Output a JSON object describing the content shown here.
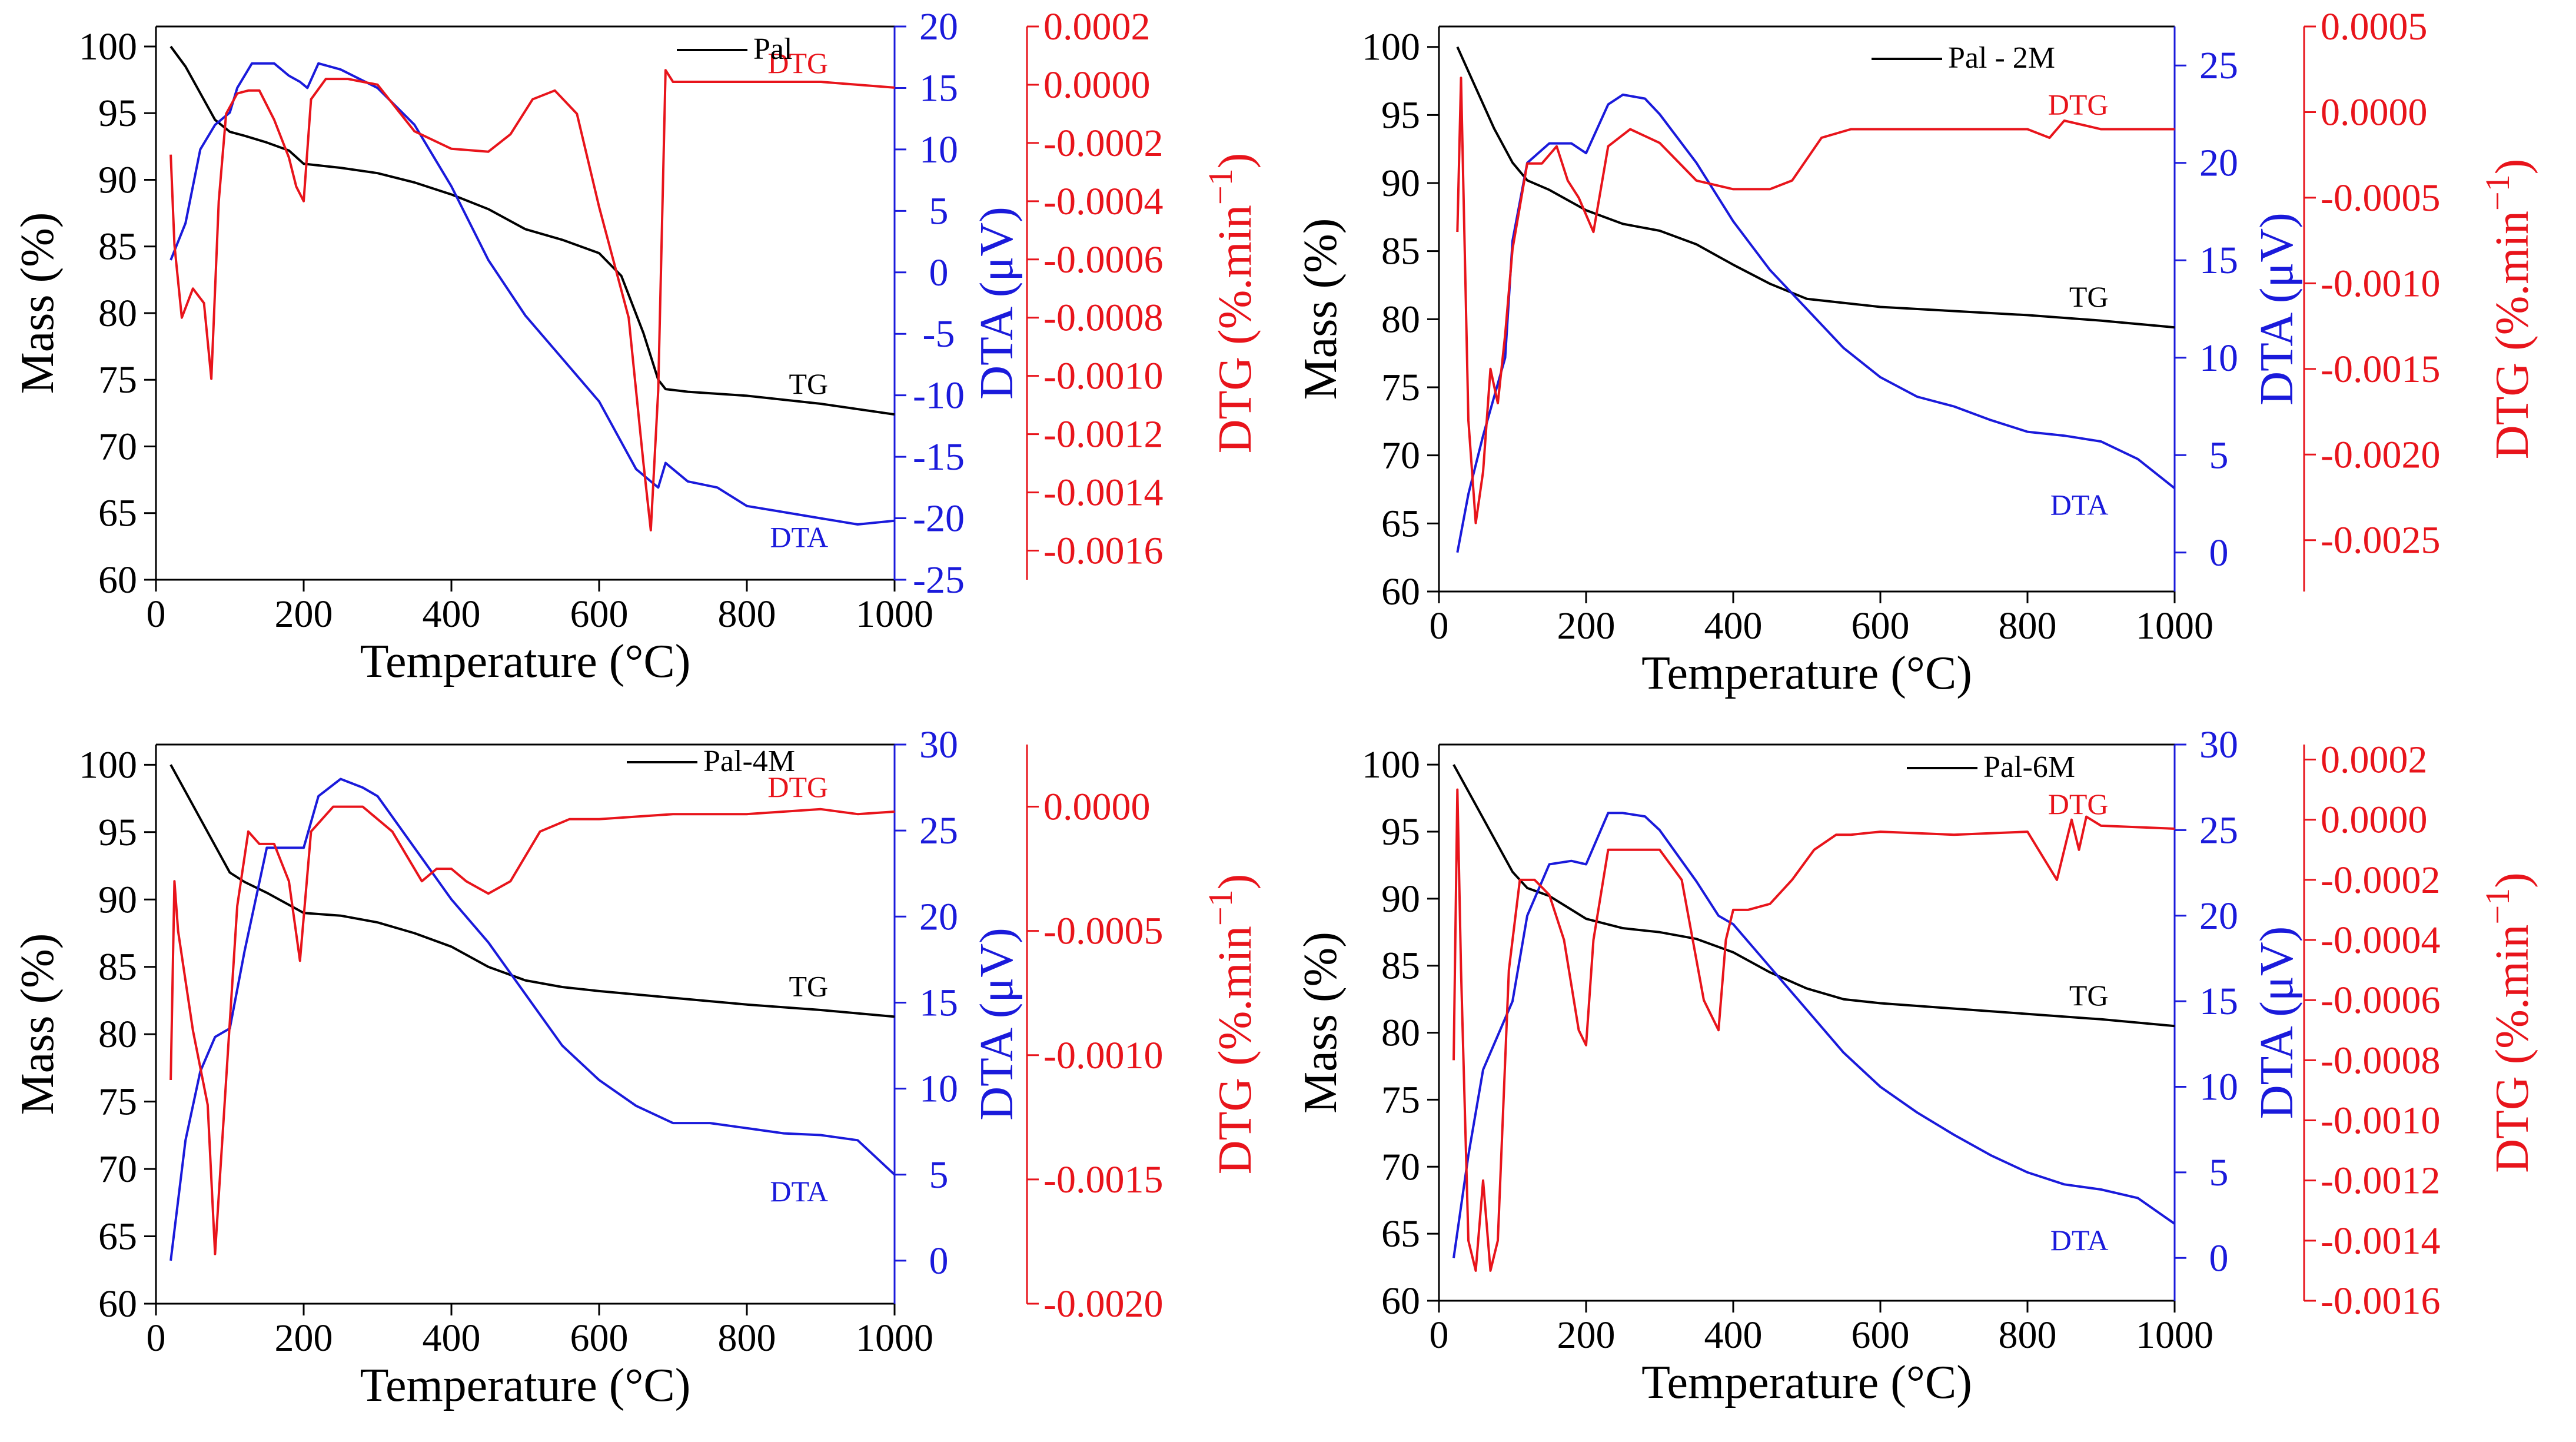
{
  "colors": {
    "tg": "#000000",
    "dta": "#1a1adb",
    "dtg": "#e8141b",
    "axis": "#000000"
  },
  "chart_data": [
    {
      "type": "line",
      "xlabel": "Temperature (°C)",
      "ylabel_mass": "Mass (%)",
      "ylabel_dta": "DTA (μV)",
      "ylabel_dtg": "DTG (%.min",
      "ylabel_dtg_sup": "−1",
      "ylabel_dtg_close": ")",
      "xlim": [
        0,
        1000
      ],
      "xticks": [
        0,
        200,
        400,
        600,
        800,
        1000
      ],
      "mass_lim": [
        60,
        101.5
      ],
      "mass_ticks": [
        60,
        65,
        70,
        75,
        80,
        85,
        90,
        95,
        100
      ],
      "dta_lim": [
        -25,
        20
      ],
      "dta_ticks": [
        -25,
        -20,
        -15,
        -10,
        -5,
        0,
        5,
        10,
        15,
        20
      ],
      "dtg_lim": [
        -0.0017,
        0.0002
      ],
      "dtg_ticks": [
        -0.0016,
        -0.0014,
        -0.0012,
        -0.001,
        -0.0008,
        -0.0006,
        -0.0004,
        -0.0002,
        0.0,
        0.0002
      ],
      "dtg_tick_labels": [
        "-0.0016",
        "-0.0014",
        "-0.0012",
        "-0.0010",
        "-0.0008",
        "-0.0006",
        "-0.0004",
        "-0.0002",
        "0.0000",
        "0.0002"
      ],
      "legend": "Pal",
      "labels": {
        "tg": "TG",
        "dta": "DTA",
        "dtg": "DTG"
      },
      "series": [
        {
          "key": "tg",
          "x": [
            20,
            40,
            60,
            80,
            100,
            120,
            150,
            180,
            200,
            250,
            300,
            350,
            400,
            450,
            500,
            550,
            600,
            630,
            660,
            680,
            690,
            720,
            800,
            900,
            1000
          ],
          "y": [
            100,
            98.5,
            96.5,
            94.5,
            93.6,
            93.3,
            92.8,
            92.2,
            91.2,
            90.9,
            90.5,
            89.8,
            88.9,
            87.8,
            86.3,
            85.5,
            84.5,
            82.8,
            78.5,
            75,
            74.3,
            74.1,
            73.8,
            73.2,
            72.4
          ]
        },
        {
          "key": "dta",
          "x": [
            20,
            40,
            60,
            80,
            100,
            110,
            130,
            160,
            180,
            195,
            205,
            220,
            250,
            300,
            350,
            400,
            450,
            500,
            550,
            600,
            650,
            670,
            680,
            690,
            720,
            760,
            800,
            850,
            900,
            950,
            1000
          ],
          "y": [
            1,
            4,
            10,
            12,
            13,
            15,
            17,
            17,
            16,
            15.5,
            15,
            17,
            16.5,
            15,
            12,
            7,
            1,
            -3.5,
            -7,
            -10.5,
            -16,
            -17,
            -17.5,
            -15.5,
            -17,
            -17.5,
            -19,
            -19.5,
            -20,
            -20.5,
            -20.2
          ]
        },
        {
          "key": "dtg",
          "x": [
            20,
            25,
            35,
            50,
            65,
            75,
            85,
            95,
            110,
            125,
            140,
            160,
            180,
            190,
            200,
            210,
            230,
            260,
            300,
            350,
            400,
            450,
            480,
            510,
            540,
            570,
            600,
            640,
            660,
            670,
            680,
            690,
            700,
            800,
            900,
            1000
          ],
          "y": [
            -0.00024,
            -0.00055,
            -0.0008,
            -0.0007,
            -0.00075,
            -0.00101,
            -0.0004,
            -0.0001,
            -3e-05,
            -2e-05,
            -2e-05,
            -0.00012,
            -0.00025,
            -0.00035,
            -0.0004,
            -5e-05,
            2e-05,
            2e-05,
            0.0,
            -0.00016,
            -0.00022,
            -0.00023,
            -0.00017,
            -5e-05,
            -2e-05,
            -0.0001,
            -0.00042,
            -0.0008,
            -0.0013,
            -0.00153,
            -0.00105,
            5e-05,
            1e-05,
            1e-05,
            1e-05,
            -1e-05
          ]
        }
      ]
    },
    {
      "type": "line",
      "xlabel": "Temperature (°C)",
      "ylabel_mass": "Mass (%)",
      "ylabel_dta": "DTA (μV)",
      "ylabel_dtg": "DTG (%.min",
      "ylabel_dtg_sup": "−1",
      "ylabel_dtg_close": ")",
      "xlim": [
        0,
        1000
      ],
      "xticks": [
        0,
        200,
        400,
        600,
        800,
        1000
      ],
      "mass_lim": [
        60,
        101.5
      ],
      "mass_ticks": [
        60,
        65,
        70,
        75,
        80,
        85,
        90,
        95,
        100
      ],
      "dta_lim": [
        -2,
        27
      ],
      "dta_ticks": [
        0,
        5,
        10,
        15,
        20,
        25
      ],
      "dtg_lim": [
        -0.0028,
        0.0005
      ],
      "dtg_ticks": [
        -0.0025,
        -0.002,
        -0.0015,
        -0.001,
        -0.0005,
        0.0,
        0.0005
      ],
      "dtg_tick_labels": [
        "-0.0025",
        "-0.0020",
        "-0.0015",
        "-0.0010",
        "-0.0005",
        "0.0000",
        "0.0005"
      ],
      "legend": "Pal - 2M",
      "labels": {
        "tg": "TG",
        "dta": "DTA",
        "dtg": "DTG"
      },
      "series": [
        {
          "key": "tg",
          "x": [
            25,
            50,
            75,
            100,
            120,
            150,
            200,
            250,
            300,
            350,
            400,
            450,
            500,
            550,
            600,
            700,
            800,
            900,
            1000
          ],
          "y": [
            100,
            97,
            94,
            91.5,
            90.2,
            89.5,
            88,
            87,
            86.5,
            85.5,
            84,
            82.6,
            81.5,
            81.2,
            80.9,
            80.6,
            80.3,
            79.9,
            79.4
          ]
        },
        {
          "key": "dta",
          "x": [
            25,
            40,
            60,
            75,
            90,
            100,
            120,
            150,
            180,
            200,
            230,
            250,
            280,
            300,
            350,
            400,
            450,
            500,
            550,
            600,
            650,
            700,
            750,
            800,
            850,
            900,
            950,
            1000
          ],
          "y": [
            0,
            3,
            6,
            8,
            10,
            16,
            20,
            21,
            21,
            20.5,
            23,
            23.5,
            23.3,
            22.5,
            20,
            17,
            14.5,
            12.5,
            10.5,
            9,
            8,
            7.5,
            6.8,
            6.2,
            6,
            5.7,
            4.8,
            3.3
          ]
        },
        {
          "key": "dtg",
          "x": [
            25,
            30,
            40,
            50,
            60,
            70,
            80,
            90,
            100,
            120,
            140,
            160,
            175,
            190,
            210,
            230,
            260,
            300,
            350,
            400,
            450,
            480,
            520,
            560,
            600,
            700,
            800,
            830,
            850,
            900,
            1000
          ],
          "y": [
            -0.0007,
            0.0002,
            -0.0018,
            -0.0024,
            -0.0021,
            -0.0015,
            -0.0017,
            -0.0013,
            -0.0008,
            -0.0003,
            -0.0003,
            -0.0002,
            -0.0004,
            -0.0005,
            -0.0007,
            -0.0002,
            -0.0001,
            -0.00018,
            -0.0004,
            -0.00045,
            -0.00045,
            -0.0004,
            -0.00015,
            -0.0001,
            -0.0001,
            -0.0001,
            -0.0001,
            -0.00015,
            -5e-05,
            -0.0001,
            -0.0001
          ]
        }
      ]
    },
    {
      "type": "line",
      "xlabel": "Temperature (°C)",
      "ylabel_mass": "Mass (%)",
      "ylabel_dta": "DTA (μV)",
      "ylabel_dtg": "DTG (%.min",
      "ylabel_dtg_sup": "−1",
      "ylabel_dtg_close": ")",
      "xlim": [
        0,
        1000
      ],
      "xticks": [
        0,
        200,
        400,
        600,
        800,
        1000
      ],
      "mass_lim": [
        60,
        101.5
      ],
      "mass_ticks": [
        60,
        65,
        70,
        75,
        80,
        85,
        90,
        95,
        100
      ],
      "dta_lim": [
        -2.5,
        30
      ],
      "dta_ticks": [
        0,
        5,
        10,
        15,
        20,
        25,
        30
      ],
      "dtg_lim": [
        -0.002,
        0.00025
      ],
      "dtg_ticks": [
        -0.002,
        -0.0015,
        -0.001,
        -0.0005,
        0.0
      ],
      "dtg_tick_labels": [
        "-0.0020",
        "-0.0015",
        "-0.0010",
        "-0.0005",
        "0.0000"
      ],
      "legend": "Pal-4M",
      "labels": {
        "tg": "TG",
        "dta": "DTA",
        "dtg": "DTG"
      },
      "series": [
        {
          "key": "tg",
          "x": [
            20,
            40,
            60,
            80,
            100,
            120,
            150,
            200,
            250,
            300,
            350,
            400,
            450,
            500,
            550,
            600,
            700,
            800,
            900,
            1000
          ],
          "y": [
            100,
            98,
            96,
            94,
            92,
            91.3,
            90.5,
            89,
            88.8,
            88.3,
            87.5,
            86.5,
            85,
            84,
            83.5,
            83.2,
            82.7,
            82.2,
            81.8,
            81.3
          ]
        },
        {
          "key": "dta",
          "x": [
            20,
            40,
            60,
            80,
            100,
            120,
            150,
            180,
            200,
            220,
            250,
            280,
            300,
            350,
            400,
            450,
            500,
            550,
            600,
            650,
            700,
            750,
            800,
            850,
            900,
            950,
            1000
          ],
          "y": [
            0,
            7,
            11,
            13,
            13.5,
            18,
            24,
            24,
            24,
            27,
            28,
            27.5,
            27,
            24,
            21,
            18.5,
            15.5,
            12.5,
            10.5,
            9,
            8,
            8,
            7.7,
            7.4,
            7.3,
            7,
            5
          ]
        },
        {
          "key": "dtg",
          "x": [
            20,
            25,
            30,
            50,
            70,
            80,
            95,
            110,
            125,
            140,
            160,
            180,
            195,
            210,
            240,
            280,
            320,
            360,
            380,
            400,
            420,
            450,
            480,
            520,
            560,
            600,
            700,
            800,
            900,
            950,
            1000
          ],
          "y": [
            -0.0011,
            -0.0003,
            -0.0005,
            -0.0009,
            -0.0012,
            -0.0018,
            -0.0011,
            -0.0004,
            -0.0001,
            -0.00015,
            -0.00015,
            -0.0003,
            -0.00062,
            -0.0001,
            0.0,
            0.0,
            -0.0001,
            -0.0003,
            -0.00025,
            -0.00025,
            -0.0003,
            -0.00035,
            -0.0003,
            -0.0001,
            -5e-05,
            -5e-05,
            -3e-05,
            -3e-05,
            -1e-05,
            -3e-05,
            -2e-05
          ]
        }
      ]
    },
    {
      "type": "line",
      "xlabel": "Temperature (°C)",
      "ylabel_mass": "Mass (%)",
      "ylabel_dta": "DTA (μV)",
      "ylabel_dtg": "DTG (%.min",
      "ylabel_dtg_sup": "−1",
      "ylabel_dtg_close": ")",
      "xlim": [
        0,
        1000
      ],
      "xticks": [
        0,
        200,
        400,
        600,
        800,
        1000
      ],
      "mass_lim": [
        60,
        101.5
      ],
      "mass_ticks": [
        60,
        65,
        70,
        75,
        80,
        85,
        90,
        95,
        100
      ],
      "dta_lim": [
        -2.5,
        30
      ],
      "dta_ticks": [
        0,
        5,
        10,
        15,
        20,
        25,
        30
      ],
      "dtg_lim": [
        -0.0016,
        0.00025
      ],
      "dtg_ticks": [
        -0.0016,
        -0.0014,
        -0.0012,
        -0.001,
        -0.0008,
        -0.0006,
        -0.0004,
        -0.0002,
        0.0,
        0.0002
      ],
      "dtg_tick_labels": [
        "-0.0016",
        "-0.0014",
        "-0.0012",
        "-0.0010",
        "-0.0008",
        "-0.0006",
        "-0.0004",
        "-0.0002",
        "0.0000",
        "0.0002"
      ],
      "legend": "Pal-6M",
      "labels": {
        "tg": "TG",
        "dta": "DTA",
        "dtg": "DTG"
      },
      "series": [
        {
          "key": "tg",
          "x": [
            20,
            40,
            60,
            80,
            100,
            120,
            150,
            200,
            250,
            300,
            350,
            400,
            450,
            500,
            550,
            600,
            700,
            800,
            900,
            1000
          ],
          "y": [
            100,
            98,
            96,
            94,
            92,
            90.8,
            90.2,
            88.5,
            87.8,
            87.5,
            87,
            86,
            84.5,
            83.3,
            82.5,
            82.2,
            81.8,
            81.4,
            81,
            80.5
          ]
        },
        {
          "key": "dta",
          "x": [
            20,
            40,
            60,
            80,
            100,
            120,
            150,
            180,
            200,
            230,
            250,
            280,
            300,
            350,
            380,
            400,
            450,
            500,
            550,
            600,
            650,
            700,
            750,
            800,
            850,
            900,
            950,
            1000
          ],
          "y": [
            0,
            6,
            11,
            13,
            15,
            20,
            23,
            23.2,
            23,
            26,
            26,
            25.8,
            25,
            22,
            20,
            19.5,
            17,
            14.5,
            12,
            10,
            8.5,
            7.2,
            6,
            5,
            4.3,
            4,
            3.5,
            2
          ]
        },
        {
          "key": "dtg",
          "x": [
            20,
            25,
            30,
            40,
            50,
            60,
            70,
            80,
            95,
            110,
            130,
            150,
            170,
            190,
            200,
            210,
            230,
            260,
            300,
            330,
            360,
            380,
            390,
            400,
            420,
            450,
            480,
            510,
            540,
            560,
            600,
            700,
            800,
            840,
            860,
            870,
            880,
            900,
            1000
          ],
          "y": [
            -0.0008,
            0.0001,
            -0.0005,
            -0.0014,
            -0.0015,
            -0.0012,
            -0.0015,
            -0.0014,
            -0.0005,
            -0.0002,
            -0.0002,
            -0.00025,
            -0.0004,
            -0.0007,
            -0.00075,
            -0.0004,
            -0.0001,
            -0.0001,
            -0.0001,
            -0.0002,
            -0.0006,
            -0.0007,
            -0.0004,
            -0.0003,
            -0.0003,
            -0.00028,
            -0.0002,
            -0.0001,
            -5e-05,
            -5e-05,
            -4e-05,
            -5e-05,
            -4e-05,
            -0.0002,
            0.0,
            -0.0001,
            1e-05,
            -2e-05,
            -3e-05
          ]
        }
      ]
    }
  ]
}
